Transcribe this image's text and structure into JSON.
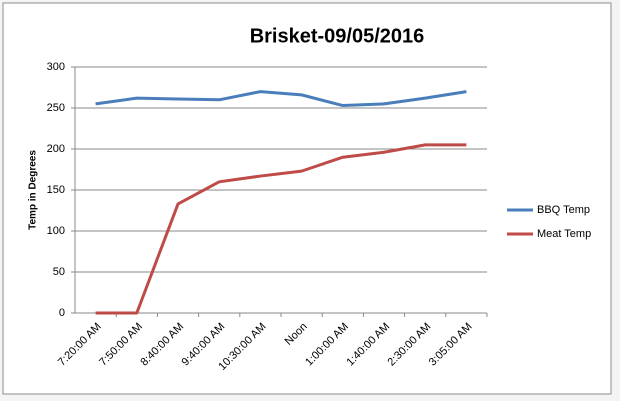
{
  "chart_data": {
    "type": "line",
    "title": "Brisket-09/05/2016",
    "y_label": "Temp in Degrees",
    "categories": [
      "7:20:00 AM",
      "7:50:00 AM",
      "8:40:00 AM",
      "9:40:00 AM",
      "10:30:00 AM",
      "Noon",
      "1:00:00 AM",
      "1:40:00 AM",
      "2:30:00 AM",
      "3:05:00 AM"
    ],
    "series": [
      {
        "name": "BBQ Temp",
        "color": "#4a7ebb",
        "values": [
          255,
          262,
          261,
          260,
          270,
          266,
          253,
          255,
          262,
          270
        ]
      },
      {
        "name": "Meat Temp",
        "color": "#be4b48",
        "values": [
          0,
          0,
          133,
          160,
          167,
          173,
          190,
          196,
          205,
          205
        ]
      }
    ],
    "ylim": [
      0,
      300
    ],
    "yticks": [
      0,
      50,
      100,
      150,
      200,
      250,
      300
    ],
    "grid": true,
    "legend": "right"
  }
}
